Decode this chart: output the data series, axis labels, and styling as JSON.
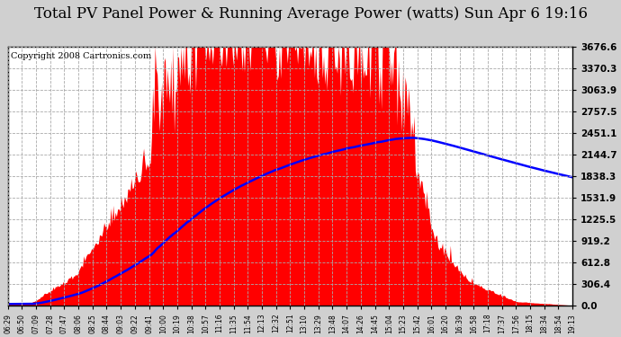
{
  "title": "Total PV Panel Power & Running Average Power (watts) Sun Apr 6 19:16",
  "copyright": "Copyright 2008 Cartronics.com",
  "y_max": 3676.6,
  "y_min": 0.0,
  "y_ticks": [
    0.0,
    306.4,
    612.8,
    919.2,
    1225.5,
    1531.9,
    1838.3,
    2144.7,
    2451.1,
    2757.5,
    3063.9,
    3370.3,
    3676.6
  ],
  "x_labels": [
    "06:29",
    "06:50",
    "07:09",
    "07:28",
    "07:47",
    "08:06",
    "08:25",
    "08:44",
    "09:03",
    "09:22",
    "09:41",
    "10:00",
    "10:19",
    "10:38",
    "10:57",
    "11:16",
    "11:35",
    "11:54",
    "12:13",
    "12:32",
    "12:51",
    "13:10",
    "13:29",
    "13:48",
    "14:07",
    "14:26",
    "14:45",
    "15:04",
    "15:23",
    "15:42",
    "16:01",
    "16:20",
    "16:39",
    "16:58",
    "17:18",
    "17:37",
    "17:56",
    "18:15",
    "18:34",
    "18:54",
    "19:13"
  ],
  "fig_background": "#d0d0d0",
  "plot_background": "#ffffff",
  "grid_color": "#aaaaaa",
  "fill_color": "#ff0000",
  "line_color": "#0000ff",
  "title_fontsize": 12,
  "copyright_fontsize": 7,
  "border_color": "#000000"
}
